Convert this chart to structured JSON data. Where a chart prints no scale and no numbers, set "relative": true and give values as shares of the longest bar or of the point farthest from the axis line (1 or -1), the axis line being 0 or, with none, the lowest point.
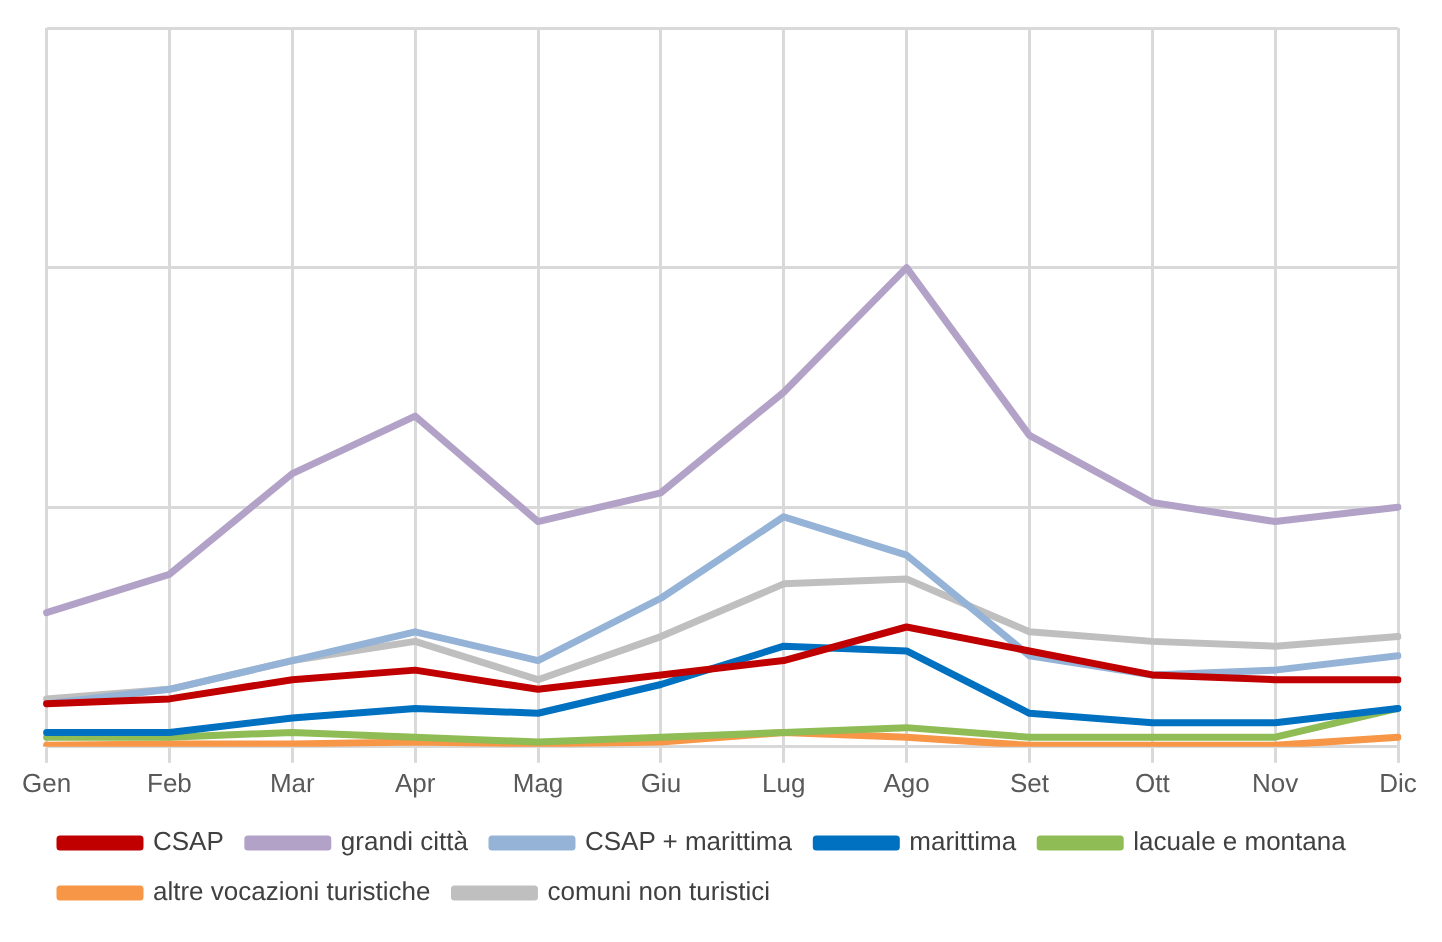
{
  "chart_data": {
    "type": "line",
    "relative": true,
    "grid": true,
    "legend": "bottom",
    "marker": "none",
    "line_style": "solid",
    "categories": [
      "Gen",
      "Feb",
      "Mar",
      "Apr",
      "Mag",
      "Giu",
      "Lug",
      "Ago",
      "Set",
      "Ott",
      "Nov",
      "Dic"
    ],
    "series": [
      {
        "name": "CSAP",
        "color": "#c00000",
        "values": [
          0.09,
          0.1,
          0.14,
          0.16,
          0.12,
          0.15,
          0.18,
          0.25,
          0.2,
          0.15,
          0.14,
          0.14
        ]
      },
      {
        "name": "grandi città",
        "color": "#b3a2c7",
        "values": [
          0.28,
          0.36,
          0.57,
          0.69,
          0.47,
          0.53,
          0.74,
          1,
          0.65,
          0.51,
          0.47,
          0.5
        ]
      },
      {
        "name": "CSAP + marittima",
        "color": "#95b3d7",
        "values": [
          0.09,
          0.12,
          0.18,
          0.24,
          0.18,
          0.31,
          0.48,
          0.4,
          0.19,
          0.15,
          0.16,
          0.19
        ]
      },
      {
        "name": "marittima",
        "color": "#0070c0",
        "values": [
          0.03,
          0.03,
          0.06,
          0.08,
          0.07,
          0.13,
          0.21,
          0.2,
          0.07,
          0.05,
          0.05,
          0.08
        ]
      },
      {
        "name": "lacuale e montana",
        "color": "#8fbc55",
        "values": [
          0.02,
          0.02,
          0.03,
          0.02,
          0.01,
          0.02,
          0.03,
          0.04,
          0.02,
          0.02,
          0.02,
          0.08
        ]
      },
      {
        "name": "altre vocazioni turistiche",
        "color": "#f79646",
        "values": [
          0.003,
          0.006,
          0.006,
          0.01,
          0.006,
          0.01,
          0.03,
          0.02,
          0.003,
          0.003,
          0.003,
          0.02
        ]
      },
      {
        "name": "comuni non turistici",
        "color": "#bfbfbf",
        "values": [
          0.1,
          0.12,
          0.18,
          0.22,
          0.14,
          0.23,
          0.34,
          0.35,
          0.24,
          0.22,
          0.21,
          0.23
        ]
      }
    ]
  }
}
